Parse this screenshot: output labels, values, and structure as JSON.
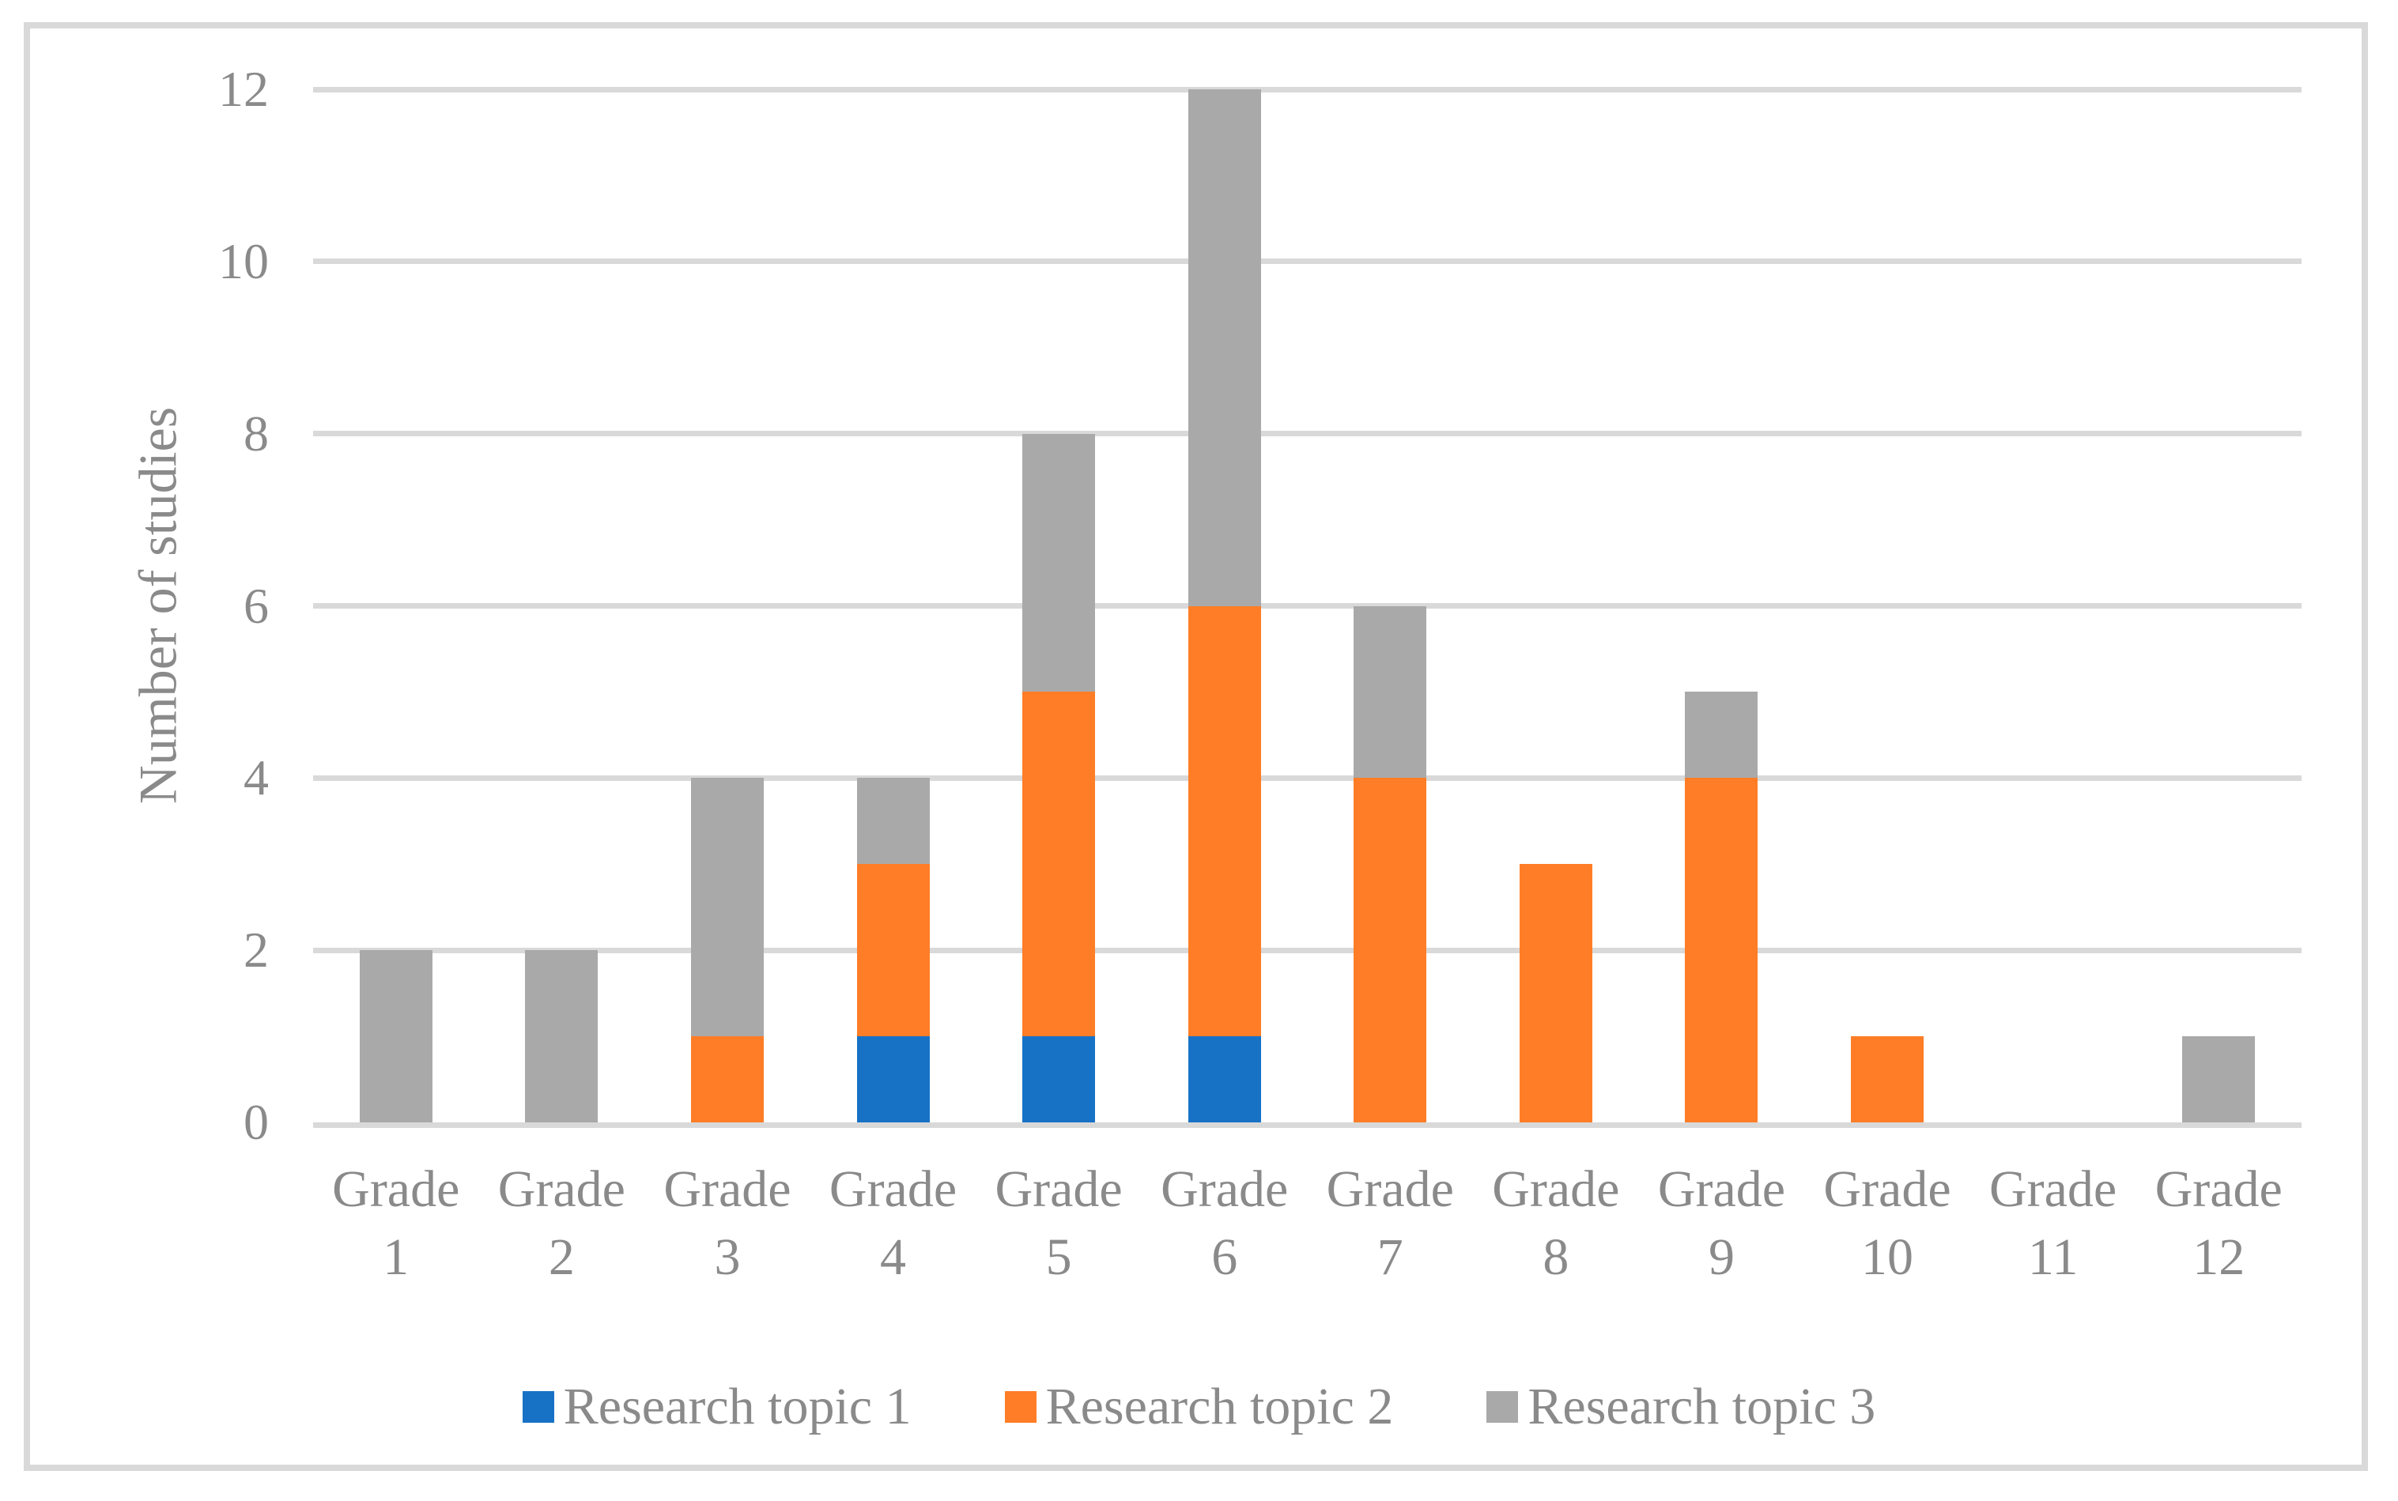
{
  "chart_data": {
    "type": "bar",
    "stacked": true,
    "title": "",
    "xlabel": "",
    "ylabel": "Number of studies",
    "categories": [
      "Grade 1",
      "Grade 2",
      "Grade 3",
      "Grade 4",
      "Grade 5",
      "Grade 6",
      "Grade 7",
      "Grade 8",
      "Grade 9",
      "Grade 10",
      "Grade 11",
      "Grade 12"
    ],
    "series": [
      {
        "name": "Research topic 1",
        "color": "#1772C6",
        "values": [
          0,
          0,
          0,
          1,
          1,
          1,
          0,
          0,
          0,
          0,
          0,
          0
        ]
      },
      {
        "name": "Research topic 2",
        "color": "#FF7D27",
        "values": [
          0,
          0,
          1,
          2,
          4,
          5,
          4,
          3,
          4,
          1,
          0,
          0
        ]
      },
      {
        "name": "Research topic 3",
        "color": "#A9A9A9",
        "values": [
          2,
          2,
          3,
          1,
          3,
          6,
          2,
          0,
          1,
          0,
          0,
          1
        ]
      }
    ],
    "totals": [
      2,
      2,
      4,
      4,
      8,
      12,
      6,
      3,
      5,
      1,
      0,
      1
    ],
    "ylim": [
      0,
      12
    ],
    "yticks": [
      0,
      2,
      4,
      6,
      8,
      10,
      12
    ],
    "grid": true,
    "legend_position": "bottom",
    "colors": {
      "gridline": "#D9D9D9",
      "frame_border": "#D9D9D9",
      "text": "#8A8A8A",
      "background": "#FFFFFF"
    }
  }
}
